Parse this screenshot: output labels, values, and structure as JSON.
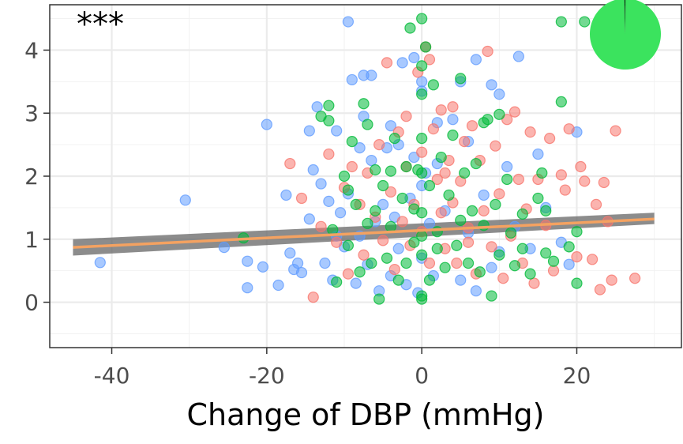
{
  "chart_data": {
    "type": "scatter",
    "xlabel": "Change of DBP (mmHg)",
    "ylabel": "",
    "xlim": [
      -48,
      33.5
    ],
    "ylim": [
      -0.72,
      4.72
    ],
    "x_ticks": [
      -40,
      -20,
      0,
      20
    ],
    "x_tick_labels": [
      "-40",
      "-20",
      "0",
      "20"
    ],
    "y_ticks": [
      0,
      1,
      2,
      3,
      4
    ],
    "y_tick_labels": [
      "0",
      "1",
      "2",
      "3",
      "4"
    ],
    "grid": true,
    "annotation": "***",
    "colors": {
      "red": "#F8766D",
      "green": "#00BA38",
      "blue": "#619CFF",
      "fit": "#F4A261",
      "band": "#666666",
      "pie": "#3BE35E"
    },
    "series": [
      {
        "color": "#619CFF",
        "points": [
          [
            -41.5,
            0.63
          ],
          [
            -30.5,
            1.62
          ],
          [
            -25.5,
            0.87
          ],
          [
            -22.5,
            0.65
          ],
          [
            -22.5,
            0.23
          ],
          [
            -20,
            2.82
          ],
          [
            -20.5,
            0.56
          ],
          [
            -18.5,
            0.27
          ],
          [
            -17,
            0.78
          ],
          [
            -16.5,
            0.52
          ],
          [
            -16,
            0.62
          ],
          [
            -15.5,
            0.47
          ],
          [
            -14.5,
            1.32
          ],
          [
            -14.5,
            2.72
          ],
          [
            -14,
            2.1
          ],
          [
            -13.5,
            3.1
          ],
          [
            -13,
            1.88
          ],
          [
            -12.5,
            0.62
          ],
          [
            -12,
            1.6
          ],
          [
            -11.5,
            0.35
          ],
          [
            -11,
            2.72
          ],
          [
            -10.5,
            1.42
          ],
          [
            -10,
            0.88
          ],
          [
            -9.5,
            4.45
          ],
          [
            -9.5,
            1.72
          ],
          [
            -9,
            3.53
          ],
          [
            -8.5,
            0.3
          ],
          [
            -8,
            1.05
          ],
          [
            -7.5,
            3.6
          ],
          [
            -7.5,
            2.95
          ],
          [
            -7,
            0.6
          ],
          [
            -6.5,
            3.6
          ],
          [
            -6.5,
            2.25
          ],
          [
            -6,
            1.28
          ],
          [
            -5.5,
            0.18
          ],
          [
            -5,
            1.55
          ],
          [
            -4.5,
            2.45
          ],
          [
            -4,
            2.8
          ],
          [
            -4,
            0.42
          ],
          [
            -3.5,
            1.35
          ],
          [
            -3,
            2.5
          ],
          [
            -2.5,
            3.8
          ],
          [
            -2,
            0.28
          ],
          [
            -1.5,
            1.65
          ],
          [
            -1,
            3.88
          ],
          [
            -1,
            2.3
          ],
          [
            -0.5,
            0.15
          ],
          [
            0,
            3.35
          ],
          [
            0,
            1.85
          ],
          [
            0,
            0.7
          ],
          [
            0,
            3.5
          ],
          [
            0.5,
            2.05
          ],
          [
            1,
            1.25
          ],
          [
            1.5,
            0.42
          ],
          [
            2,
            2.2
          ],
          [
            3,
            1.45
          ],
          [
            4,
            2.9
          ],
          [
            5,
            3.5
          ],
          [
            5,
            0.35
          ],
          [
            6,
            1.1
          ],
          [
            7,
            3.85
          ],
          [
            7,
            0.18
          ],
          [
            8,
            1.7
          ],
          [
            9,
            3.45
          ],
          [
            9,
            0.55
          ],
          [
            10,
            3.3
          ],
          [
            11,
            2.15
          ],
          [
            12,
            1.2
          ],
          [
            12.5,
            3.9
          ],
          [
            14,
            0.85
          ],
          [
            15,
            2.35
          ],
          [
            16,
            1.5
          ],
          [
            18,
            0.95
          ],
          [
            19,
            0.6
          ],
          [
            20,
            2.7
          ],
          [
            -17.5,
            1.7
          ],
          [
            -11,
            1.05
          ],
          [
            -8,
            2.45
          ],
          [
            -3,
            0.85
          ],
          [
            2,
            2.85
          ],
          [
            6,
            2.55
          ],
          [
            10,
            0.8
          ]
        ]
      },
      {
        "color": "#F8766D",
        "points": [
          [
            -17,
            2.2
          ],
          [
            -15.5,
            1.65
          ],
          [
            -14,
            0.08
          ],
          [
            -13,
            1.2
          ],
          [
            -12,
            2.35
          ],
          [
            -11,
            0.95
          ],
          [
            -10,
            1.82
          ],
          [
            -9.5,
            0.45
          ],
          [
            -9,
            2.15
          ],
          [
            -8,
            1.55
          ],
          [
            -7.5,
            0.75
          ],
          [
            -7,
            2.05
          ],
          [
            -6,
            1.35
          ],
          [
            -5.5,
            2.5
          ],
          [
            -5,
            0.98
          ],
          [
            -4.5,
            3.8
          ],
          [
            -4,
            1.75
          ],
          [
            -3.5,
            0.52
          ],
          [
            -3,
            2.7
          ],
          [
            -2.5,
            1.28
          ],
          [
            -2,
            2.95
          ],
          [
            -1.5,
            0.9
          ],
          [
            -1,
            1.55
          ],
          [
            -0.5,
            3.65
          ],
          [
            0,
            2.38
          ],
          [
            0,
            1.12
          ],
          [
            0.5,
            4.05
          ],
          [
            1,
            3.85
          ],
          [
            1,
            0.62
          ],
          [
            1.5,
            2.75
          ],
          [
            2,
            1.95
          ],
          [
            2.5,
            1.42
          ],
          [
            2.5,
            3.05
          ],
          [
            3,
            0.85
          ],
          [
            3.5,
            2.25
          ],
          [
            4,
            1.58
          ],
          [
            4,
            3.1
          ],
          [
            4.5,
            0.62
          ],
          [
            5,
            1.92
          ],
          [
            5.5,
            2.55
          ],
          [
            6,
            1.18
          ],
          [
            6.5,
            2.8
          ],
          [
            7,
            0.45
          ],
          [
            7.5,
            2.25
          ],
          [
            8,
            1.45
          ],
          [
            8.5,
            3.98
          ],
          [
            9,
            0.88
          ],
          [
            9.5,
            2.48
          ],
          [
            10,
            1.72
          ],
          [
            10.5,
            0.38
          ],
          [
            11,
            2.9
          ],
          [
            11.5,
            1.05
          ],
          [
            12,
            3.02
          ],
          [
            12.5,
            1.95
          ],
          [
            13,
            0.62
          ],
          [
            13.5,
            1.48
          ],
          [
            14,
            2.7
          ],
          [
            14.5,
            0.3
          ],
          [
            15,
            1.95
          ],
          [
            16,
            1.22
          ],
          [
            16.5,
            2.6
          ],
          [
            17,
            0.5
          ],
          [
            18,
            2.02
          ],
          [
            18.5,
            1.78
          ],
          [
            19,
            2.75
          ],
          [
            20,
            0.72
          ],
          [
            20.5,
            2.15
          ],
          [
            21,
            1.92
          ],
          [
            22,
            0.68
          ],
          [
            22.5,
            1.55
          ],
          [
            23,
            0.2
          ],
          [
            23.5,
            1.9
          ],
          [
            24,
            1.28
          ],
          [
            24.5,
            0.35
          ],
          [
            25,
            2.72
          ],
          [
            27.5,
            0.38
          ],
          [
            -2,
            2.15
          ],
          [
            3,
            2.05
          ],
          [
            6,
            0.95
          ]
        ]
      },
      {
        "color": "#00BA38",
        "points": [
          [
            -23,
            1.02
          ],
          [
            -12,
            3.12
          ],
          [
            -12,
            2.88
          ],
          [
            -11.5,
            1.15
          ],
          [
            -11,
            0.32
          ],
          [
            -10,
            2.0
          ],
          [
            -9.5,
            0.9
          ],
          [
            -9,
            2.55
          ],
          [
            -8.5,
            1.55
          ],
          [
            -8,
            0.48
          ],
          [
            -7.5,
            3.15
          ],
          [
            -7,
            2.82
          ],
          [
            -7,
            1.25
          ],
          [
            -6.5,
            0.62
          ],
          [
            -6,
            2.1
          ],
          [
            -6,
            1.45
          ],
          [
            -5.5,
            0.05
          ],
          [
            -5,
            1.85
          ],
          [
            -4.5,
            0.7
          ],
          [
            -4,
            1.2
          ],
          [
            -3.5,
            2.6
          ],
          [
            -3,
            0.35
          ],
          [
            -2.5,
            1.65
          ],
          [
            -2,
            2.15
          ],
          [
            -1.5,
            4.35
          ],
          [
            -1,
            0.95
          ],
          [
            -1,
            1.48
          ],
          [
            -0.5,
            2.1
          ],
          [
            0,
            4.5
          ],
          [
            0,
            3.75
          ],
          [
            0,
            2.6
          ],
          [
            0,
            2.05
          ],
          [
            0,
            1.42
          ],
          [
            0,
            0.75
          ],
          [
            0,
            0.1
          ],
          [
            0,
            3.3
          ],
          [
            0,
            1.05
          ],
          [
            0.5,
            4.05
          ],
          [
            1,
            1.85
          ],
          [
            1,
            0.35
          ],
          [
            1.5,
            3.45
          ],
          [
            2,
            1.12
          ],
          [
            2.5,
            2.3
          ],
          [
            3,
            0.55
          ],
          [
            3.5,
            1.7
          ],
          [
            4,
            2.65
          ],
          [
            4.5,
            0.9
          ],
          [
            5,
            1.3
          ],
          [
            5.5,
            2.05
          ],
          [
            6,
            0.62
          ],
          [
            6.5,
            1.45
          ],
          [
            7,
            2.2
          ],
          [
            7.5,
            0.48
          ],
          [
            8,
            1.22
          ],
          [
            8.5,
            2.9
          ],
          [
            9,
            0.1
          ],
          [
            9.5,
            1.55
          ],
          [
            10,
            0.75
          ],
          [
            11,
            1.95
          ],
          [
            11.5,
            1.1
          ],
          [
            12,
            0.58
          ],
          [
            13,
            1.4
          ],
          [
            14,
            0.45
          ],
          [
            15,
            1.65
          ],
          [
            15.5,
            2.05
          ],
          [
            16,
            1.45
          ],
          [
            17,
            0.65
          ],
          [
            18,
            3.18
          ],
          [
            18,
            4.45
          ],
          [
            19,
            0.88
          ],
          [
            20,
            0.3
          ],
          [
            20,
            1.12
          ],
          [
            21,
            4.45
          ],
          [
            -13,
            2.95
          ],
          [
            -9.5,
            1.78
          ],
          [
            -4,
            2.08
          ],
          [
            -2,
            0.62
          ],
          [
            2,
            0.85
          ],
          [
            5,
            3.55
          ],
          [
            8,
            2.85
          ],
          [
            10,
            2.98
          ],
          [
            13,
            0.85
          ],
          [
            16,
            0.78
          ],
          [
            0,
            0.05
          ]
        ]
      }
    ],
    "fit_line": {
      "x": [
        -45,
        30
      ],
      "y": [
        0.87,
        1.32
      ]
    },
    "confidence_band": {
      "x": [
        -45,
        30
      ],
      "lower": [
        0.74,
        1.24
      ],
      "upper": [
        1.0,
        1.42
      ]
    },
    "inset_pie": {
      "slices": [
        {
          "label": "",
          "value": 99.6,
          "color": "#3BE35E"
        },
        {
          "label": "",
          "value": 0.4,
          "color": "#000000"
        }
      ]
    }
  }
}
